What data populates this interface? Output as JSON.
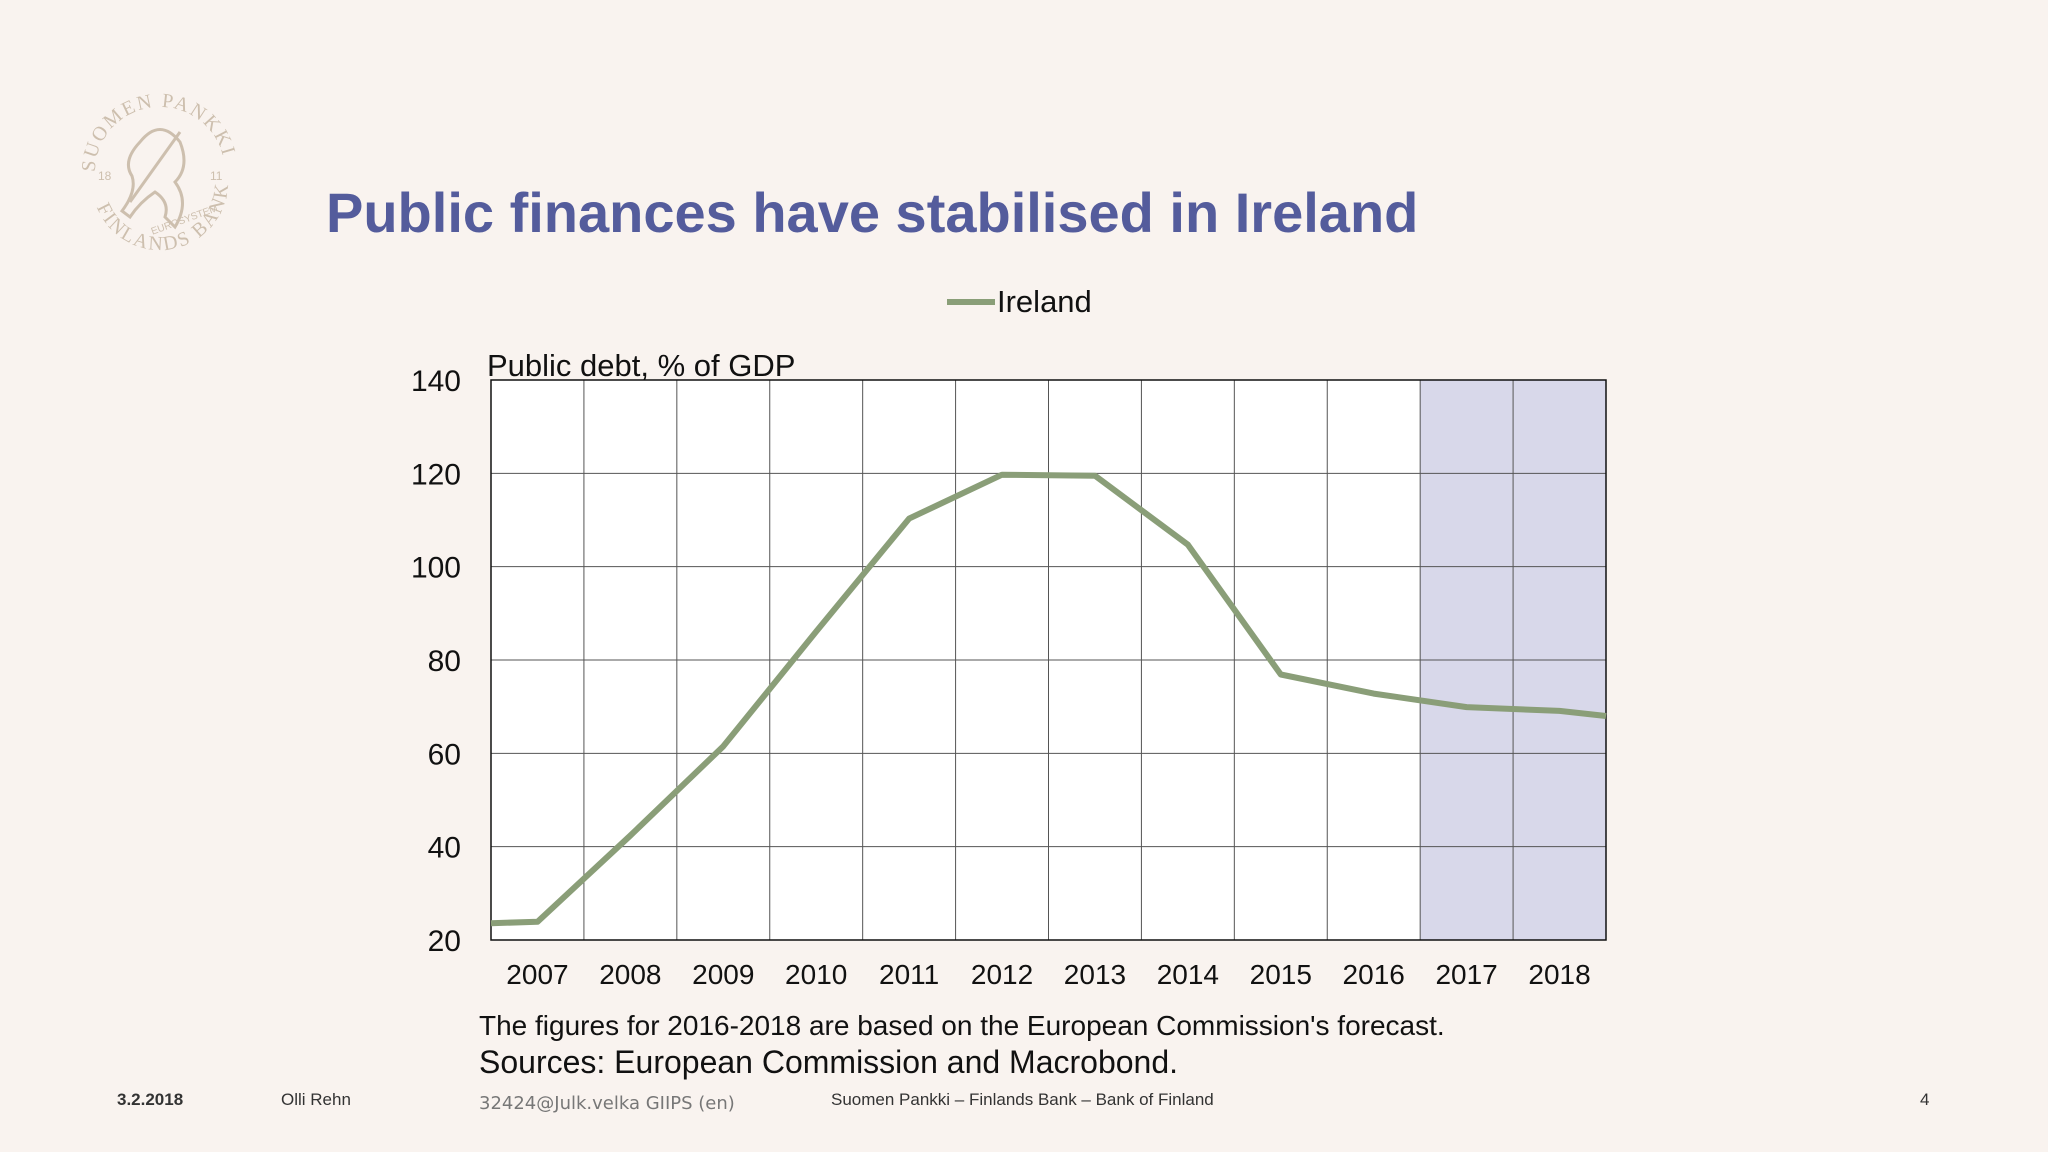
{
  "slide": {
    "title": "Public finances have stabilised in Ireland",
    "note_forecast": "The figures for 2016-2018 are based on the European Commission's forecast.",
    "note_sources": "Sources: European Commission and Macrobond."
  },
  "logo": {
    "text_top": "SUOMEN PANKKI",
    "text_bottom": "FINLANDS BANK",
    "text_center": "EUROSYSTEM",
    "year_left": "18",
    "year_right": "11",
    "color": "#cdbfae"
  },
  "footer": {
    "date": "3.2.2018",
    "author": "Olli Rehn",
    "code": "32424@Julk.velka GIIPS (en)",
    "organization": "Suomen Pankki – Finlands Bank – Bank of Finland",
    "page_number": "4"
  },
  "colors": {
    "title": "#545c9c",
    "line": "#8a9e78",
    "forecast_shade": "#d8d8ea",
    "background": "#f9f3ef"
  },
  "chart_data": {
    "type": "line",
    "ylabel": "Public debt, % of GDP",
    "xlabel": "",
    "ylim": [
      20,
      140
    ],
    "y_ticks": [
      20,
      40,
      60,
      80,
      100,
      120,
      140
    ],
    "categories": [
      "2007",
      "2008",
      "2009",
      "2010",
      "2011",
      "2012",
      "2013",
      "2014",
      "2015",
      "2016",
      "2017",
      "2018"
    ],
    "x": [
      2006.5,
      2007,
      2008,
      2009,
      2010,
      2011,
      2012,
      2013,
      2014,
      2015,
      2016,
      2017,
      2018,
      2018.5
    ],
    "series": [
      {
        "name": "Ireland",
        "values": [
          23.6,
          23.9,
          42.4,
          61.5,
          86.1,
          110.3,
          119.7,
          119.5,
          104.7,
          76.9,
          72.8,
          69.9,
          69.1,
          68.0
        ]
      }
    ],
    "forecast_shaded_from": 2016.5,
    "forecast_shaded_to": 2018.5,
    "grid": true,
    "legend": "top-center"
  }
}
